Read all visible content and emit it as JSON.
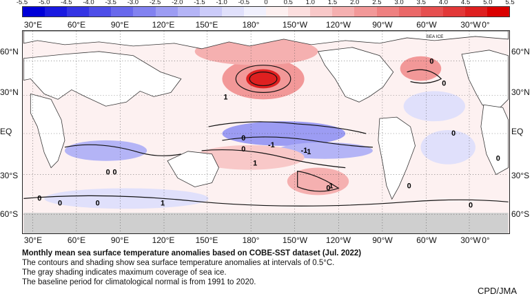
{
  "colorbar": {
    "labels": [
      "-5.5",
      "-5.0",
      "-4.5",
      "-4.0",
      "-3.5",
      "-3.0",
      "-2.5",
      "-2.0",
      "-1.5",
      "-1.0",
      "-0.5",
      "0",
      "0.5",
      "1.0",
      "1.5",
      "2.0",
      "2.5",
      "3.0",
      "3.5",
      "4.0",
      "4.5",
      "5.0",
      "5.5"
    ],
    "colors": [
      "#0000d8",
      "#1a1ae0",
      "#3434e4",
      "#4e4ee8",
      "#6868ec",
      "#8282f0",
      "#9c9cf3",
      "#b4b4f6",
      "#cbcbf9",
      "#e0e0fb",
      "#f0f0fd",
      "#fdf0f0",
      "#fbdede",
      "#f8c8c8",
      "#f5b0b0",
      "#f29898",
      "#ee8080",
      "#ea6868",
      "#e65050",
      "#e23838",
      "#de2020",
      "#da0000"
    ]
  },
  "lon_labels": [
    "30°E",
    "60°E",
    "90°E",
    "120°E",
    "150°E",
    "180°",
    "150°W",
    "120°W",
    "90°W",
    "60°W",
    "30°W",
    "0°"
  ],
  "lat_labels": [
    "60°N",
    "30°N",
    "EQ",
    "30°S",
    "60°S"
  ],
  "contour_labels": [
    "0",
    "0",
    "1",
    "0",
    "0",
    "1",
    "1",
    "0",
    "-1",
    "-1",
    "-1",
    "0",
    "0",
    "0",
    "0",
    "1",
    "0",
    "0",
    "0",
    "0",
    "0"
  ],
  "sea_ice_label": "SEA ICE",
  "caption": {
    "title": "Monthly mean sea surface temperature anomalies based on COBE-SST dataset (Jul. 2022)",
    "line1": "The contours and shading show sea surface temperature anomalies at intervals of 0.5°C.",
    "line2": "The gray shading indicates maximum coverage of sea ice.",
    "line3": "The baseline period for climatological normal is from 1991 to 2020."
  },
  "credit": "CPD/JMA"
}
